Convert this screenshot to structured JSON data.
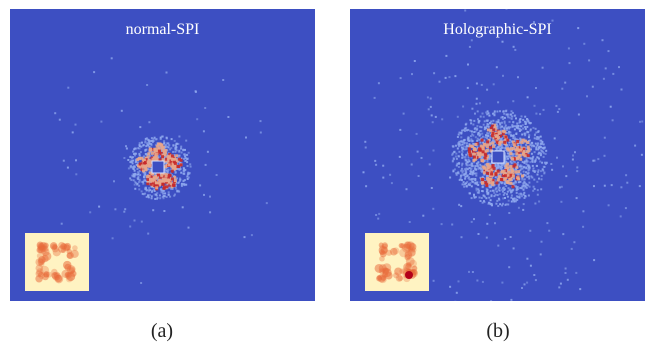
{
  "panels": [
    {
      "title": "normal-SPI",
      "caption": "(a)",
      "speckle_spread": "compact",
      "inset_has_marker": false
    },
    {
      "title": "Holographic-SPI",
      "caption": "(b)",
      "speckle_spread": "wide",
      "inset_has_marker": true
    }
  ],
  "colors": {
    "background": "#3d4fc2",
    "speckle_low": "#8fa8ee",
    "speckle_mid": "#e8a58a",
    "speckle_high": "#c62a2a",
    "inset_bg": "#fff3c2",
    "inset_blob": "#e86a3a",
    "inset_marker": "#b3001a"
  }
}
